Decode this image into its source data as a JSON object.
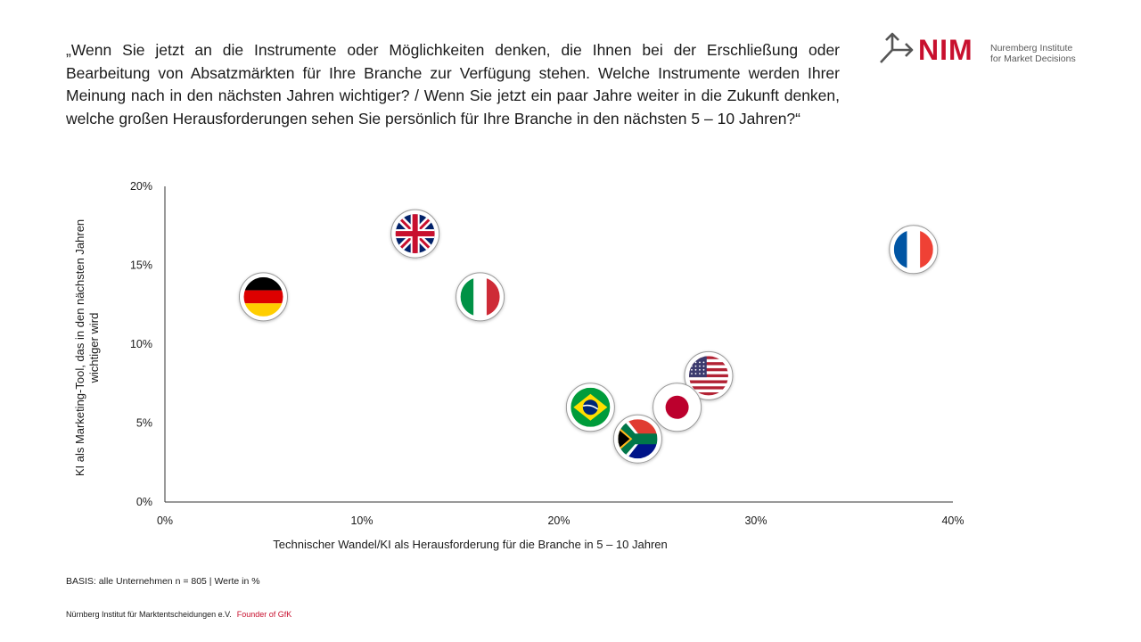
{
  "question": "„Wenn Sie jetzt an die Instrumente oder Möglichkeiten denken, die Ihnen bei der Erschließung oder Bearbeitung von Absatzmärkten für Ihre Branche zur Verfügung stehen. Welche Instrumente werden Ihrer Meinung nach in den nächsten Jahren wichtiger? / Wenn Sie jetzt ein paar Jahre weiter in die Zukunft denken, welche großen Herausforderungen sehen Sie persönlich für Ihre Branche in den nächsten 5 – 10 Jahren?“",
  "logo": {
    "wordmark": "NIM",
    "subtitle_line1": "Nuremberg Institute",
    "subtitle_line2": "for Market Decisions",
    "color": "#c8102e"
  },
  "chart_data": {
    "type": "scatter",
    "xlabel": "Technischer Wandel/KI als Herausforderung für die Branche in 5 – 10 Jahren",
    "ylabel": "KI als Marketing-Tool, das in den nächsten Jahren wichtiger wird",
    "xlim": [
      0,
      40
    ],
    "ylim": [
      0,
      20
    ],
    "x_ticks": [
      "0%",
      "10%",
      "20%",
      "30%",
      "40%"
    ],
    "y_ticks": [
      "0%",
      "5%",
      "10%",
      "15%",
      "20%"
    ],
    "grid": false,
    "points": [
      {
        "flag": "germany-flag",
        "x": 5,
        "y": 13
      },
      {
        "flag": "uk-flag",
        "x": 12.7,
        "y": 17
      },
      {
        "flag": "italy-flag",
        "x": 16,
        "y": 13
      },
      {
        "flag": "france-flag",
        "x": 38,
        "y": 16
      },
      {
        "flag": "usa-flag",
        "x": 27.6,
        "y": 8
      },
      {
        "flag": "japan-flag",
        "x": 26,
        "y": 6
      },
      {
        "flag": "brazil-flag",
        "x": 21.6,
        "y": 6
      },
      {
        "flag": "south-africa-flag",
        "x": 24,
        "y": 4
      }
    ]
  },
  "basis": "BASIS: alle Unternehmen  n = 805 | Werte  in %",
  "footer": {
    "institute": "Nürnberg Institut für Marktentscheidungen e.V.",
    "founder": "Founder of GfK"
  }
}
